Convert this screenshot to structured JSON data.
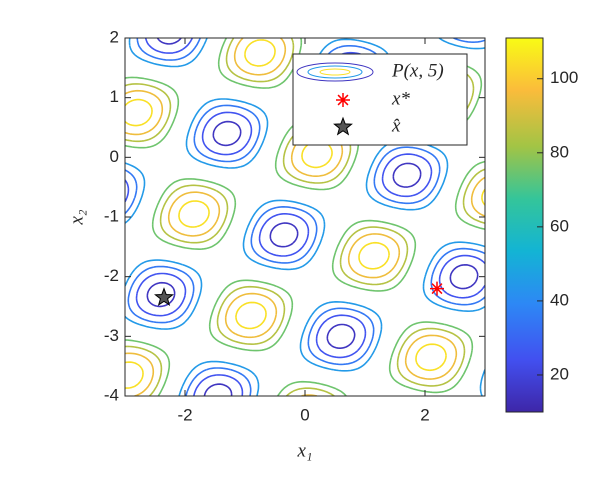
{
  "chart_data": {
    "type": "contour",
    "xlabel": "x₁",
    "ylabel": "x₂",
    "xlim": [
      -3,
      3
    ],
    "ylim": [
      -4,
      2
    ],
    "xticks": [
      -2,
      0,
      2
    ],
    "yticks": [
      2,
      1,
      0,
      -1,
      -2,
      -3,
      -4
    ],
    "levels": [
      15,
      25,
      35,
      45,
      75,
      85,
      95,
      105
    ],
    "clim": [
      10,
      111
    ],
    "cticks": [
      20,
      40,
      60,
      80,
      100
    ],
    "contour_name": "P(x, 5)",
    "series": [
      {
        "name": "x*",
        "color": "#ff0000",
        "marker": "asterisk",
        "x": [
          2.2
        ],
        "y": [
          -2.2
        ]
      },
      {
        "name": "x̂",
        "color": "#555555",
        "marker": "star",
        "x": [
          -2.35
        ],
        "y": [
          -2.35
        ]
      }
    ]
  }
}
